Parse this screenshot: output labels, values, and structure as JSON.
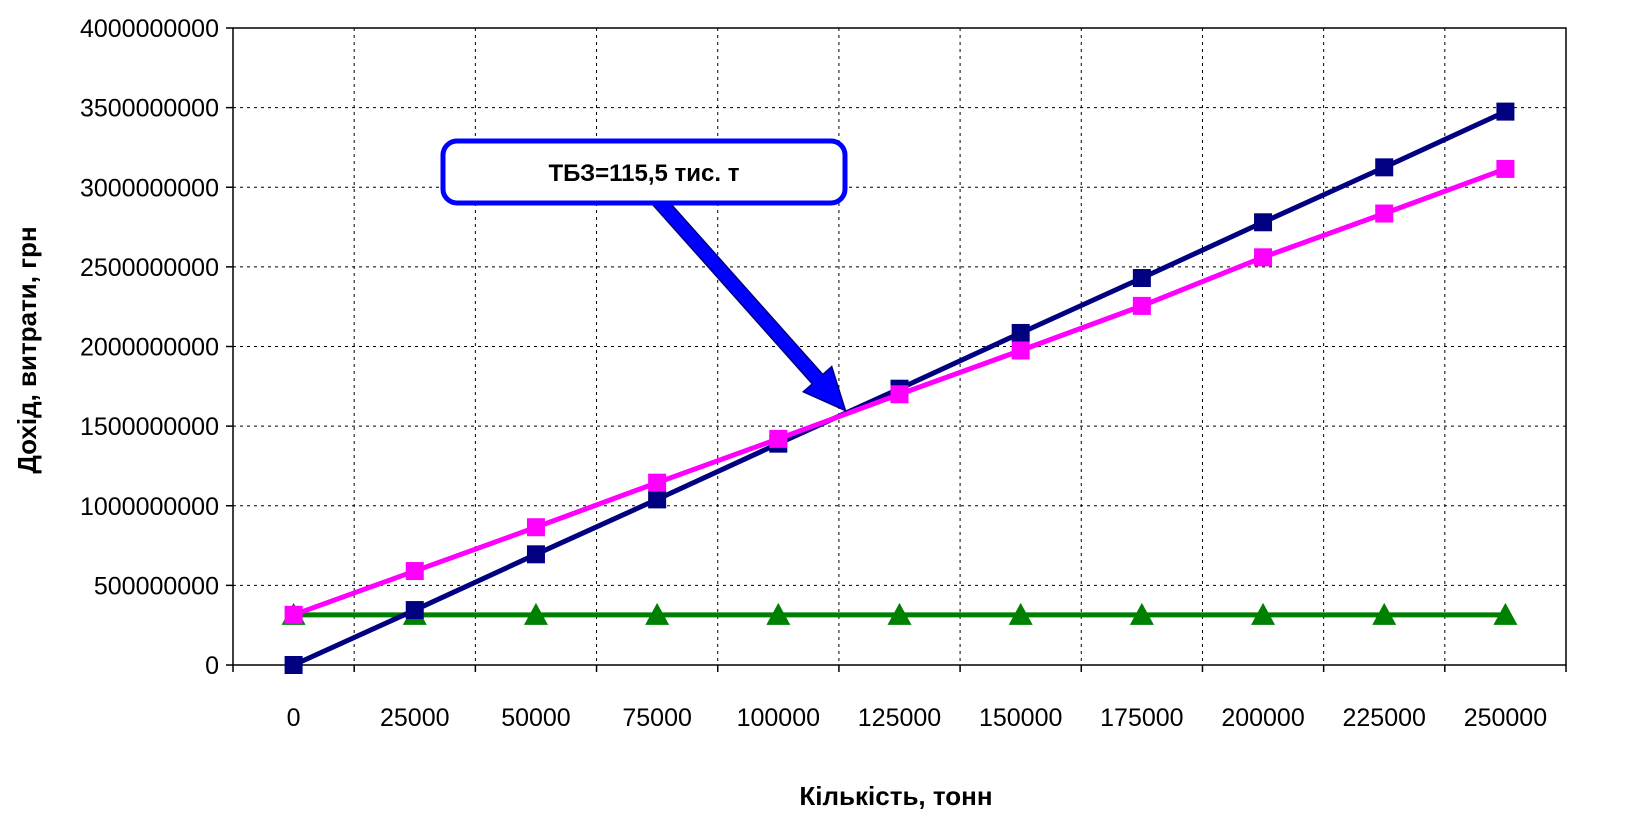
{
  "chart_data": {
    "type": "line",
    "title": "",
    "xlabel": "Кількість, тонн",
    "ylabel": "Дохід, витрати, грн",
    "x": [
      0,
      25000,
      50000,
      75000,
      100000,
      125000,
      150000,
      175000,
      200000,
      225000,
      250000
    ],
    "x_tick_labels": [
      "0",
      "25000",
      "50000",
      "75000",
      "100000",
      "125000",
      "150000",
      "175000",
      "200000",
      "225000",
      "250000"
    ],
    "y_tick_labels": [
      "0",
      "500000000",
      "1000000000",
      "1500000000",
      "2000000000",
      "2500000000",
      "3000000000",
      "3500000000",
      "4000000000"
    ],
    "ylim": [
      0,
      4000000000
    ],
    "grid": true,
    "legend": "none",
    "series": [
      {
        "marker": "square",
        "color": "#000080",
        "values": [
          0,
          345000000,
          695000000,
          1040000000,
          1390000000,
          1735000000,
          2085000000,
          2430000000,
          2780000000,
          3125000000,
          3475000000
        ]
      },
      {
        "marker": "square",
        "color": "#ff00ff",
        "values": [
          315000000,
          590000000,
          865000000,
          1145000000,
          1420000000,
          1700000000,
          1975000000,
          2255000000,
          2560000000,
          2835000000,
          3115000000
        ]
      },
      {
        "marker": "triangle",
        "color": "#008000",
        "values": [
          315000000,
          315000000,
          315000000,
          315000000,
          315000000,
          315000000,
          315000000,
          315000000,
          315000000,
          315000000,
          315000000
        ]
      }
    ],
    "annotation": {
      "text": "ТБЗ=115,5 тис. т",
      "border_color": "#0000ff",
      "arrow_color": "#0000ff",
      "point_x": 115500,
      "point_y": 1560000000
    }
  }
}
